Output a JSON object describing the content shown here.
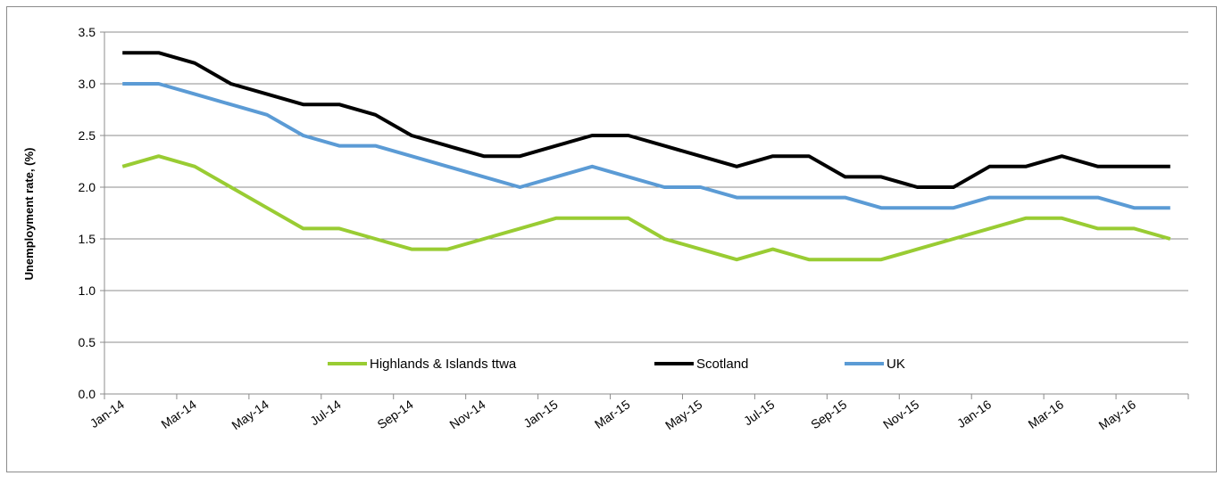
{
  "chart_data": {
    "type": "line",
    "title": "",
    "xlabel": "",
    "ylabel": "Unemployment rate, (%)",
    "ylim": [
      0,
      3.5
    ],
    "yticks": [
      "0.0",
      "0.5",
      "1.0",
      "1.5",
      "2.0",
      "2.5",
      "3.0",
      "3.5"
    ],
    "x": [
      "Jan-14",
      "Feb-14",
      "Mar-14",
      "Apr-14",
      "May-14",
      "Jun-14",
      "Jul-14",
      "Aug-14",
      "Sep-14",
      "Oct-14",
      "Nov-14",
      "Dec-14",
      "Jan-15",
      "Feb-15",
      "Mar-15",
      "Apr-15",
      "May-15",
      "Jun-15",
      "Jul-15",
      "Aug-15",
      "Sep-15",
      "Oct-15",
      "Nov-15",
      "Dec-15",
      "Jan-16",
      "Feb-16",
      "Mar-16",
      "Apr-16",
      "May-16",
      "Jun-16"
    ],
    "xtick_labels": [
      "Jan-14",
      "Mar-14",
      "May-14",
      "Jul-14",
      "Sep-14",
      "Nov-14",
      "Jan-15",
      "Mar-15",
      "May-15",
      "Jul-15",
      "Sep-15",
      "Nov-15",
      "Jan-16",
      "Mar-16",
      "May-16"
    ],
    "grid": true,
    "legend_position": "bottom-center",
    "series": [
      {
        "name": "Highlands & Islands ttwa",
        "color": "#99cc33",
        "values": [
          2.2,
          2.3,
          2.2,
          2.0,
          1.8,
          1.6,
          1.6,
          1.5,
          1.4,
          1.4,
          1.5,
          1.6,
          1.7,
          1.7,
          1.7,
          1.5,
          1.4,
          1.3,
          1.4,
          1.3,
          1.3,
          1.3,
          1.4,
          1.5,
          1.6,
          1.7,
          1.7,
          1.6,
          1.6,
          1.5
        ]
      },
      {
        "name": "Scotland",
        "color": "#000000",
        "values": [
          3.3,
          3.3,
          3.2,
          3.0,
          2.9,
          2.8,
          2.8,
          2.7,
          2.5,
          2.4,
          2.3,
          2.3,
          2.4,
          2.5,
          2.5,
          2.4,
          2.3,
          2.2,
          2.3,
          2.3,
          2.1,
          2.1,
          2.0,
          2.0,
          2.2,
          2.2,
          2.3,
          2.2,
          2.2,
          2.2
        ]
      },
      {
        "name": "UK",
        "color": "#5b9bd5",
        "values": [
          3.0,
          3.0,
          2.9,
          2.8,
          2.7,
          2.5,
          2.4,
          2.4,
          2.3,
          2.2,
          2.1,
          2.0,
          2.1,
          2.2,
          2.1,
          2.0,
          2.0,
          1.9,
          1.9,
          1.9,
          1.9,
          1.8,
          1.8,
          1.8,
          1.9,
          1.9,
          1.9,
          1.9,
          1.8,
          1.8
        ]
      }
    ]
  }
}
